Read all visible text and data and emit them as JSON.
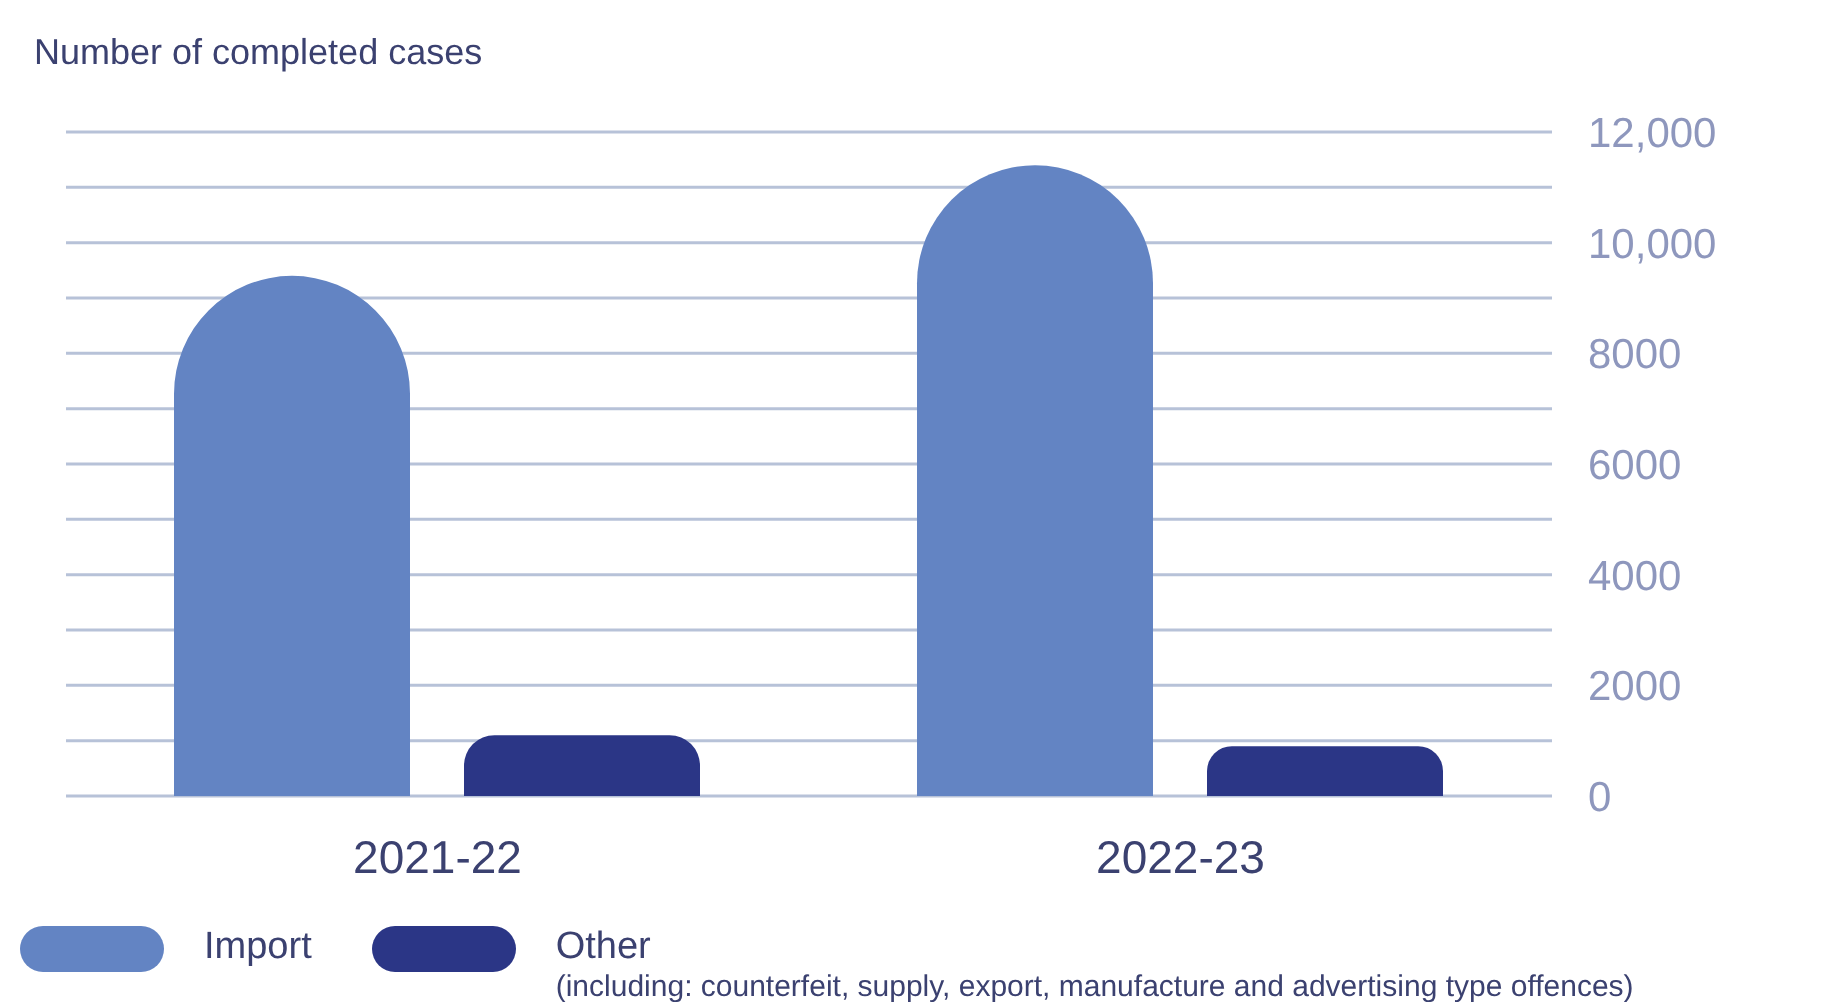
{
  "chart_data": {
    "type": "bar",
    "ylabel": "Number of completed cases",
    "categories": [
      "2021-22",
      "2022-23"
    ],
    "series": [
      {
        "name": "Import",
        "color": "#6384c3",
        "values": [
          9400,
          11400
        ]
      },
      {
        "name": "Other",
        "color": "#2b3686",
        "values": [
          1100,
          900
        ]
      }
    ],
    "ylim": [
      0,
      12000
    ],
    "yticks": [
      0,
      {
        "value": 1000,
        "label": null
      },
      2000,
      {
        "value": 3000,
        "label": null
      },
      4000,
      {
        "value": 5000,
        "label": null
      },
      6000,
      {
        "value": 7000,
        "label": null
      },
      8000,
      {
        "value": 9000,
        "label": null
      },
      {
        "value": 10000,
        "label": "10,000"
      },
      {
        "value": 11000,
        "label": null
      },
      {
        "value": 12000,
        "label": "12,000"
      }
    ],
    "grid": "y",
    "legend": "bottom left",
    "annotations": [
      "(including: counterfeit, supply, export, manufacture and advertising type offences)"
    ]
  }
}
